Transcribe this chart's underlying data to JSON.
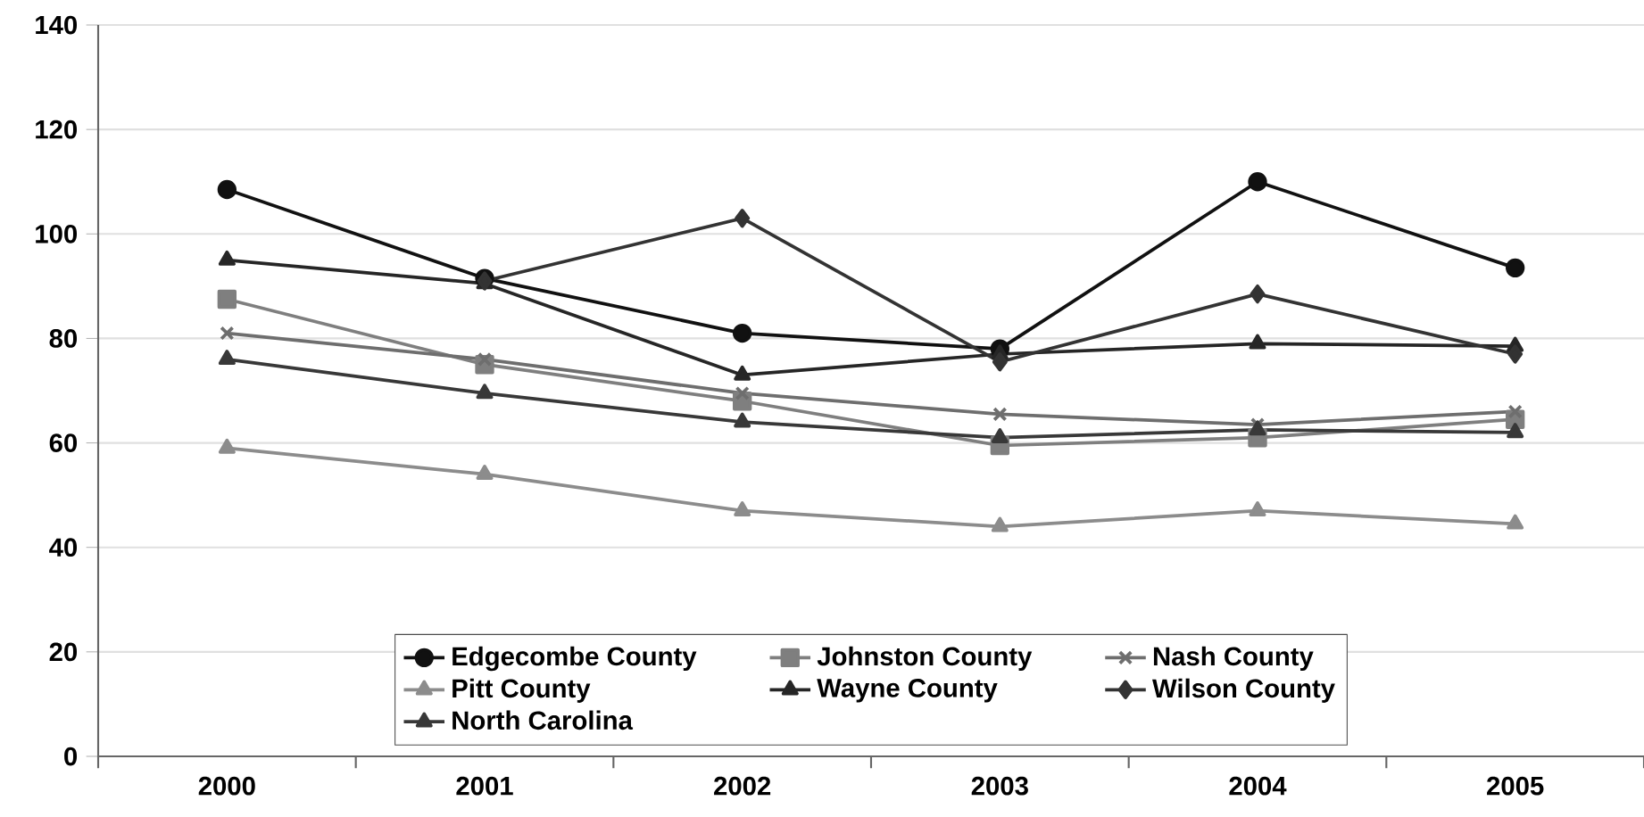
{
  "chart_data": {
    "type": "line",
    "categories": [
      "2000",
      "2001",
      "2002",
      "2003",
      "2004",
      "2005"
    ],
    "series": [
      {
        "name": "Edgecombe County",
        "color": "#111111",
        "marker": "circle",
        "values": [
          108.5,
          91.5,
          81,
          78,
          110,
          93.5
        ]
      },
      {
        "name": "Johnston County",
        "color": "#7f7f7f",
        "marker": "square",
        "values": [
          87.5,
          75,
          68,
          59.5,
          61,
          64.5
        ]
      },
      {
        "name": "Nash County",
        "color": "#6e6e6e",
        "marker": "cross",
        "values": [
          81,
          76,
          69.5,
          65.5,
          63.5,
          66
        ]
      },
      {
        "name": "Pitt County",
        "color": "#8c8c8c",
        "marker": "triangle",
        "values": [
          59,
          54,
          47,
          44,
          47,
          44.5
        ]
      },
      {
        "name": "Wayne County",
        "color": "#262626",
        "marker": "triangle",
        "values": [
          95,
          90.5,
          73,
          77,
          79,
          78.5
        ]
      },
      {
        "name": "Wilson County",
        "color": "#333333",
        "marker": "diamond",
        "values": [
          null,
          91,
          103,
          75.5,
          88.5,
          77
        ]
      },
      {
        "name": "North Carolina",
        "color": "#383838",
        "marker": "triangle",
        "values": [
          76,
          69.5,
          64,
          61,
          62.5,
          62
        ]
      }
    ],
    "ylim": [
      0,
      140
    ],
    "yticks": [
      0,
      20,
      40,
      60,
      80,
      100,
      120,
      140
    ],
    "grid": "y",
    "legend": "bottom",
    "line_style": "solid"
  }
}
